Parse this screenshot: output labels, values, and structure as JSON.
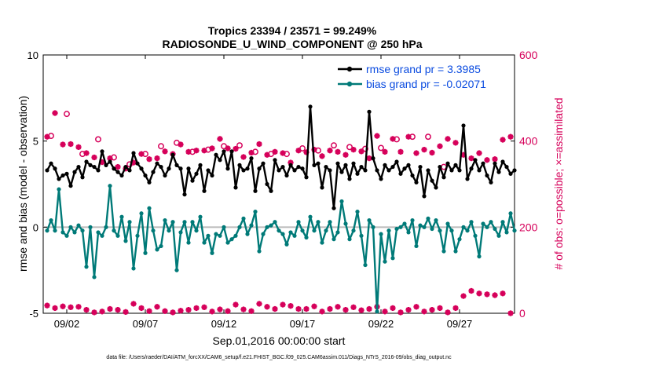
{
  "chart_data": {
    "type": "line",
    "title": "Tropics 23394 / 23571 = 99.249%",
    "subtitle": "RADIOSONDE_U_WIND_COMPONENT @ 250 hPa",
    "xlabel": "Sep.01,2016 00:00:00 start",
    "ylabel": "rmse and bias (model - observation)",
    "ylabel_right": "# of obs: o=possible; ×=assimilated",
    "footer": "data file: /Users/raeder/DAI/ATM_forcXX/CAM6_setup/f.e21.FHIST_BGC.f09_025.CAM6assim.011/Diags_NTrS_2016-09/obs_diag_output.nc",
    "xlim": [
      0.5,
      30.5
    ],
    "ylim": [
      -5,
      10
    ],
    "ylim_right": [
      0,
      600
    ],
    "yticks": [
      "-5",
      "0",
      "5",
      "10"
    ],
    "yticks_right": [
      "0",
      "200",
      "400",
      "600"
    ],
    "xticks": [
      {
        "x": 2,
        "label": "09/02"
      },
      {
        "x": 7,
        "label": "09/07"
      },
      {
        "x": 12,
        "label": "09/12"
      },
      {
        "x": 17,
        "label": "09/17"
      },
      {
        "x": 22,
        "label": "09/22"
      },
      {
        "x": 27,
        "label": "09/27"
      }
    ],
    "grid": false,
    "legend_position": "top-right",
    "series": [
      {
        "name": "rmse grand pr = 3.3985",
        "color": "#000000",
        "start": 0.75,
        "step": 0.25,
        "values": [
          3.3,
          3.7,
          3.4,
          2.8,
          3.0,
          3.1,
          2.4,
          3.2,
          3.5,
          2.9,
          3.8,
          3.6,
          3.5,
          3.3,
          4.4,
          3.6,
          3.8,
          3.4,
          3.2,
          3.0,
          3.5,
          3.3,
          4.3,
          3.7,
          3.4,
          3.0,
          2.6,
          3.2,
          3.7,
          3.5,
          3.0,
          3.4,
          4.2,
          3.6,
          3.4,
          1.9,
          3.4,
          2.7,
          3.1,
          3.6,
          2.1,
          3.3,
          3.0,
          4.2,
          3.9,
          4.4,
          3.4,
          4.4,
          2.3,
          3.6,
          3.3,
          3.4,
          4.0,
          2.1,
          3.4,
          3.7,
          2.5,
          2.1,
          3.9,
          3.3,
          3.5,
          3.0,
          3.6,
          3.3,
          3.5,
          3.4,
          2.9,
          7.0,
          3.6,
          3.7,
          2.3,
          3.5,
          3.3,
          1.1,
          3.7,
          3.2,
          3.6,
          2.8,
          3.7,
          3.1,
          3.5,
          3.3,
          6.7,
          4.0,
          3.3,
          2.8,
          3.6,
          3.3,
          3.5,
          3.8,
          3.1,
          3.4,
          3.6,
          3.0,
          2.6,
          3.5,
          1.8,
          3.3,
          2.7,
          2.3,
          3.5,
          2.9,
          3.7,
          3.3,
          3.6,
          3.3,
          5.9,
          2.8,
          3.4,
          3.9,
          3.3,
          3.7,
          3.0,
          2.6,
          3.7,
          3.2,
          3.8,
          3.5,
          3.1,
          3.3
        ]
      },
      {
        "name": "bias grand pr = -0.02071",
        "color": "#007a78",
        "start": 0.75,
        "step": 0.25,
        "values": [
          -0.2,
          0.4,
          -0.2,
          2.2,
          -0.3,
          -0.5,
          0.0,
          -0.3,
          0.1,
          -0.2,
          -2.3,
          0.0,
          -2.9,
          -0.3,
          -0.5,
          0.0,
          2.4,
          -0.2,
          -0.5,
          0.6,
          -0.8,
          0.3,
          -2.4,
          -0.5,
          0.8,
          -1.5,
          1.1,
          -0.2,
          -1.3,
          -1.1,
          0.4,
          -0.2,
          0.3,
          -2.5,
          -0.3,
          0.3,
          -0.9,
          0.3,
          -0.2,
          0.6,
          -0.9,
          -0.5,
          -1.5,
          -0.4,
          -0.5,
          0.0,
          -0.9,
          -0.7,
          -0.5,
          0.0,
          0.5,
          -0.4,
          0.1,
          0.9,
          -1.4,
          -0.4,
          0.0,
          0.1,
          0.3,
          -0.2,
          -0.4,
          -1.0,
          -0.3,
          -0.5,
          0.3,
          -0.2,
          -0.6,
          0.6,
          -0.2,
          0.3,
          -0.9,
          -0.2,
          0.3,
          -0.7,
          -0.3,
          1.5,
          0.2,
          -0.7,
          -0.2,
          0.9,
          -0.5,
          -2.2,
          0.4,
          0.0,
          -4.9,
          -0.4,
          -2.0,
          -0.2,
          -1.8,
          -0.1,
          0.0,
          0.2,
          -0.3,
          0.4,
          -1.1,
          0.1,
          0.0,
          0.5,
          -0.1,
          0.4,
          -0.2,
          -1.4,
          0.2,
          -0.2,
          -1.4,
          -0.7,
          0.0,
          -0.2,
          0.3,
          -0.5,
          -1.7,
          0.2,
          0.0,
          0.3,
          -0.1,
          -0.5,
          0.3,
          -0.3,
          0.8,
          -0.2
        ]
      }
    ],
    "obs_possible": {
      "name": "possible",
      "marker": "o",
      "color": "#d6005a",
      "days": [
        1,
        2,
        3,
        4,
        5,
        6,
        7,
        8,
        9,
        10,
        11,
        12,
        13,
        14,
        15,
        16,
        17,
        18,
        19,
        20,
        21,
        22,
        23,
        24,
        25,
        26,
        27,
        28,
        29,
        30
      ],
      "values": [
        412,
        463,
        370,
        404,
        362,
        346,
        370,
        388,
        396,
        375,
        380,
        388,
        390,
        375,
        370,
        370,
        383,
        378,
        390,
        386,
        382,
        384,
        404,
        410,
        410,
        340,
        0,
        0,
        0,
        0
      ]
    },
    "obs_assimilated": {
      "name": "assimilated",
      "marker": "×",
      "color": "#d6005a",
      "days": [
        0.75,
        1.25,
        1.75,
        2.25,
        2.75,
        3.25,
        3.75,
        4.25,
        4.75,
        5.25,
        5.75,
        6.25,
        6.75,
        7.25,
        7.75,
        8.25,
        8.75,
        9.25,
        9.75,
        10.25,
        10.75,
        11.25,
        11.75,
        12.25,
        12.75,
        13.25,
        13.75,
        14.25,
        14.75,
        15.25,
        15.75,
        16.25,
        16.75,
        17.25,
        17.75,
        18.25,
        18.75,
        19.25,
        19.75,
        20.25,
        20.75,
        21.25,
        21.75,
        22.25,
        22.75,
        23.25,
        23.75,
        24.25,
        24.75,
        25.25,
        25.75,
        26.25,
        26.75,
        27.25,
        27.75,
        28.25,
        28.75,
        29.25,
        29.75,
        30.25
      ],
      "values": [
        410,
        465,
        392,
        393,
        386,
        372,
        362,
        351,
        360,
        340,
        336,
        350,
        370,
        358,
        360,
        376,
        370,
        392,
        375,
        378,
        378,
        383,
        405,
        383,
        382,
        363,
        373,
        393,
        368,
        375,
        372,
        350,
        378,
        374,
        380,
        365,
        378,
        375,
        368,
        380,
        376,
        360,
        412,
        375,
        405,
        375,
        410,
        372,
        380,
        373,
        388,
        405,
        396,
        368,
        360,
        372,
        356,
        358,
        403,
        410
      ]
    },
    "obs_low_assimilated": {
      "name": "assimilated (near zero)",
      "marker": "×",
      "color": "#d6005a",
      "days": [
        0.75,
        1.25,
        1.75,
        2.25,
        2.75,
        3.25,
        3.75,
        4.25,
        4.75,
        5.25,
        5.75,
        6.25,
        6.75,
        7.25,
        7.75,
        8.25,
        8.75,
        9.25,
        9.75,
        10.25,
        10.75,
        11.25,
        11.75,
        12.25,
        12.75,
        13.25,
        13.75,
        14.25,
        14.75,
        15.25,
        15.75,
        16.25,
        16.75,
        17.25,
        17.75,
        18.25,
        18.75,
        19.25,
        19.75,
        20.25,
        20.75,
        21.25,
        21.75,
        22.25,
        22.75,
        23.25,
        23.75,
        24.25,
        24.75,
        25.25,
        25.75,
        26.25,
        26.75,
        27.25,
        27.75,
        28.25,
        28.75,
        29.25,
        29.75,
        30.25
      ],
      "values": [
        18,
        12,
        16,
        14,
        15,
        8,
        2,
        4,
        10,
        8,
        3,
        22,
        12,
        5,
        15,
        5,
        2,
        6,
        8,
        12,
        14,
        4,
        9,
        5,
        20,
        9,
        5,
        22,
        15,
        10,
        20,
        17,
        10,
        10,
        16,
        4,
        10,
        15,
        8,
        14,
        7,
        10,
        15,
        4,
        12,
        2,
        8,
        15,
        4,
        8,
        12,
        2,
        12,
        40,
        52,
        46,
        44,
        42,
        46,
        0
      ]
    }
  }
}
